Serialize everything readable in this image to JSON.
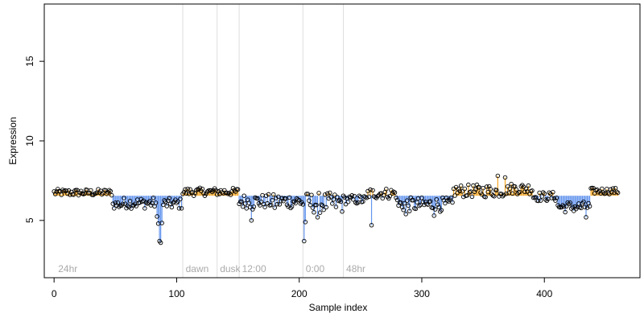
{
  "chart_data": {
    "type": "scatter",
    "title": "",
    "xlabel": "Sample index",
    "ylabel": "Expression",
    "xlim": [
      -8,
      478
    ],
    "ylim": [
      1.4,
      18.6
    ],
    "xticks": [
      "0",
      "100",
      "200",
      "300",
      "400"
    ],
    "yticks": [
      "5",
      "10",
      "15"
    ],
    "baseline": 6.55,
    "grid": false,
    "legend": "none",
    "colors": {
      "above": "#f5a623",
      "below": "#6495ed",
      "point_stroke": "#000000",
      "divider": "#dddddd",
      "annotation": "#aaaaaa"
    },
    "annotations": [
      {
        "label": "24hr",
        "x": 2
      },
      {
        "label": "dawn",
        "x": 106
      },
      {
        "label": "dusk",
        "x": 134
      },
      {
        "label": "12:00",
        "x": 152
      },
      {
        "label": "0:00",
        "x": 204
      },
      {
        "label": "48hr",
        "x": 237
      }
    ],
    "dividers": [
      105,
      133,
      151,
      203,
      236
    ],
    "segments": [
      {
        "start": 0,
        "end": 47,
        "base": 6.75,
        "amp": 0.22
      },
      {
        "start": 48,
        "end": 55,
        "base": 6.0,
        "amp": 0.3
      },
      {
        "start": 56,
        "end": 83,
        "base": 6.1,
        "amp": 0.35
      },
      {
        "start": 84,
        "end": 88,
        "base": 4.6,
        "amp": 0.8,
        "dips": [
          [
            86,
            3.7
          ],
          [
            87,
            3.6
          ],
          [
            85,
            4.8
          ]
        ]
      },
      {
        "start": 89,
        "end": 104,
        "base": 6.05,
        "amp": 0.35
      },
      {
        "start": 105,
        "end": 150,
        "base": 6.8,
        "amp": 0.25
      },
      {
        "start": 151,
        "end": 202,
        "base": 6.2,
        "amp": 0.45,
        "dips": [
          [
            161,
            5.0
          ],
          [
            162,
            5.7
          ],
          [
            180,
            5.8
          ]
        ]
      },
      {
        "start": 203,
        "end": 235,
        "base": 6.1,
        "amp": 0.65,
        "dips": [
          [
            204,
            3.7
          ],
          [
            205,
            4.9
          ],
          [
            215,
            5.2
          ]
        ]
      },
      {
        "start": 236,
        "end": 255,
        "base": 6.3,
        "amp": 0.3
      },
      {
        "start": 256,
        "end": 279,
        "base": 6.7,
        "amp": 0.35,
        "dips": [
          [
            259,
            4.7
          ]
        ]
      },
      {
        "start": 280,
        "end": 325,
        "base": 6.0,
        "amp": 0.45,
        "dips": [
          [
            287,
            5.4
          ],
          [
            310,
            5.3
          ]
        ]
      },
      {
        "start": 326,
        "end": 370,
        "base": 6.85,
        "amp": 0.4,
        "peaks": [
          [
            362,
            7.8
          ],
          [
            368,
            7.7
          ],
          [
            375,
            7.6
          ]
        ]
      },
      {
        "start": 371,
        "end": 390,
        "base": 7.0,
        "amp": 0.35
      },
      {
        "start": 391,
        "end": 410,
        "base": 6.5,
        "amp": 0.3
      },
      {
        "start": 411,
        "end": 437,
        "base": 5.85,
        "amp": 0.35,
        "dips": [
          [
            434,
            5.2
          ]
        ]
      },
      {
        "start": 438,
        "end": 460,
        "base": 6.85,
        "amp": 0.2
      }
    ]
  }
}
